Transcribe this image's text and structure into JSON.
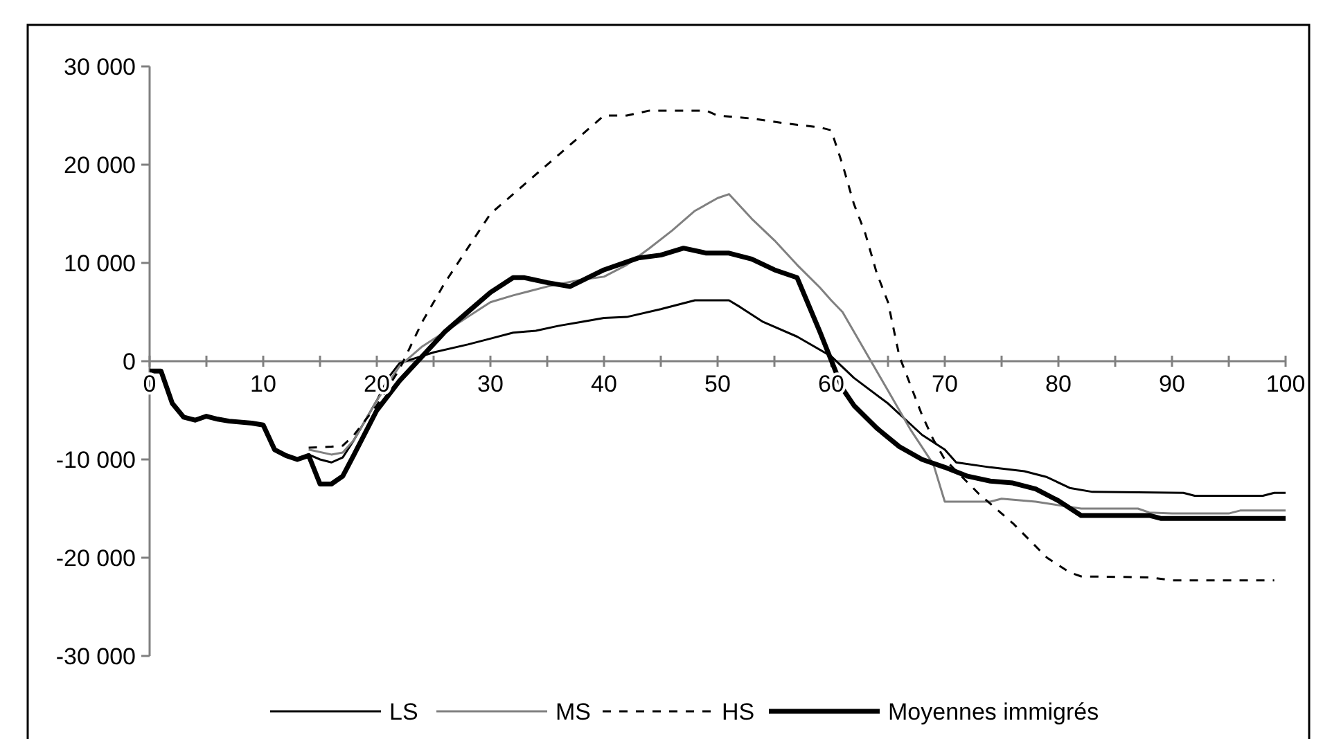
{
  "chart_data": {
    "type": "line",
    "xlim": [
      0,
      100
    ],
    "ylim": [
      -30000,
      30000
    ],
    "xticks": [
      0,
      {
        "value": 5,
        "label": null
      },
      10,
      {
        "value": 15,
        "label": null
      },
      20,
      {
        "value": 25,
        "label": null
      },
      30,
      {
        "value": 35,
        "label": null
      },
      40,
      {
        "value": 45,
        "label": null
      },
      50,
      {
        "value": 55,
        "label": null
      },
      60,
      {
        "value": 65,
        "label": null
      },
      70,
      {
        "value": 75,
        "label": null
      },
      80,
      {
        "value": 85,
        "label": null
      },
      90,
      {
        "value": 95,
        "label": null
      },
      100
    ],
    "yticks": [
      {
        "value": -30000,
        "label": "-30 000"
      },
      {
        "value": -20000,
        "label": "-20 000"
      },
      {
        "value": -10000,
        "label": "-10 000"
      },
      0,
      {
        "value": 10000,
        "label": "10 000"
      },
      {
        "value": 20000,
        "label": "20 000"
      },
      {
        "value": 30000,
        "label": "30 000"
      }
    ],
    "grid": false,
    "legend": "bottom",
    "marker": "none",
    "series": [
      {
        "name": "LS",
        "color": "#000000",
        "line_style": "solid",
        "x": [
          14,
          15,
          16,
          17,
          18,
          20,
          21,
          22,
          25,
          28,
          30,
          32,
          34,
          36,
          38,
          40,
          42,
          45,
          48,
          51,
          52,
          54,
          57,
          60,
          62,
          65,
          68,
          70,
          71,
          74,
          77,
          79,
          81,
          83,
          91,
          92,
          98,
          99,
          100
        ],
        "values": [
          -9500,
          -10000,
          -10300,
          -9800,
          -8000,
          -4000,
          -1700,
          -200,
          900,
          1700,
          2300,
          2900,
          3100,
          3600,
          4000,
          4400,
          4500,
          5300,
          6200,
          6200,
          5500,
          4000,
          2500,
          500,
          -1700,
          -4300,
          -7500,
          -9000,
          -10300,
          -10800,
          -11200,
          -11800,
          -12900,
          -13300,
          -13400,
          -13700,
          -13700,
          -13400,
          -13400
        ]
      },
      {
        "name": "MS",
        "color": "#808080",
        "line_style": "solid",
        "x": [
          14,
          16,
          17,
          18,
          20,
          22,
          24,
          26,
          28,
          30,
          32,
          35,
          38,
          40,
          42,
          44,
          46,
          48,
          50,
          51,
          53,
          55,
          57,
          59,
          60,
          61,
          63,
          65,
          67,
          69,
          70,
          74,
          75,
          78,
          82,
          87,
          88,
          90,
          95,
          96,
          100
        ],
        "values": [
          -9000,
          -9500,
          -9300,
          -8000,
          -4000,
          -500,
          1500,
          3000,
          4500,
          6000,
          6700,
          7600,
          8300,
          8600,
          9800,
          11500,
          13300,
          15300,
          16600,
          17000,
          14500,
          12300,
          9800,
          7500,
          6200,
          5000,
          1000,
          -3000,
          -7000,
          -10500,
          -14300,
          -14300,
          -14000,
          -14300,
          -15000,
          -15000,
          -15400,
          -15500,
          -15500,
          -15200,
          -15200
        ]
      },
      {
        "name": "HS",
        "color": "#000000",
        "line_style": "dashed",
        "x": [
          14,
          16,
          17,
          18,
          20,
          22,
          24,
          26,
          28,
          30,
          32,
          34,
          36,
          38,
          40,
          42,
          44,
          49,
          50,
          53,
          56,
          59,
          60,
          61,
          62,
          63,
          64,
          65,
          66,
          67,
          68,
          69,
          70,
          73,
          76,
          79,
          81,
          82,
          88,
          90,
          99
        ],
        "values": [
          -8800,
          -8700,
          -8600,
          -7500,
          -4500,
          -800,
          4000,
          8000,
          11500,
          15000,
          17000,
          19000,
          21000,
          23000,
          25000,
          25000,
          25500,
          25500,
          25000,
          24700,
          24200,
          23800,
          23500,
          20000,
          16000,
          13000,
          9000,
          6000,
          500,
          -2500,
          -5500,
          -8000,
          -10000,
          -13500,
          -16500,
          -20000,
          -21500,
          -21900,
          -22000,
          -22300,
          -22300
        ]
      },
      {
        "name": "Moyennes immigrés",
        "color": "#000000",
        "line_style": "solid",
        "x": [
          0,
          1,
          2,
          3,
          4,
          5,
          6,
          7,
          9,
          10,
          11,
          12,
          13,
          14,
          15,
          16,
          17,
          18,
          20,
          22,
          24,
          26,
          28,
          30,
          32,
          33,
          35,
          37,
          40,
          43,
          45,
          47,
          49,
          51,
          53,
          55,
          57,
          59,
          61,
          62,
          64,
          66,
          68,
          70,
          72,
          74,
          76,
          78,
          80,
          82,
          88,
          89,
          100
        ],
        "values": [
          -1000,
          -1000,
          -4300,
          -5700,
          -6000,
          -5600,
          -5900,
          -6100,
          -6300,
          -6500,
          -9000,
          -9600,
          -10000,
          -9600,
          -12500,
          -12500,
          -11700,
          -9500,
          -5000,
          -2000,
          500,
          3000,
          5000,
          7000,
          8500,
          8500,
          8000,
          7600,
          9300,
          10500,
          10800,
          11500,
          11000,
          11000,
          10400,
          9300,
          8500,
          3000,
          -2800,
          -4500,
          -6800,
          -8700,
          -10000,
          -10800,
          -11700,
          -12200,
          -12400,
          -13000,
          -14200,
          -15700,
          -15700,
          -16000,
          -16000
        ]
      }
    ]
  }
}
